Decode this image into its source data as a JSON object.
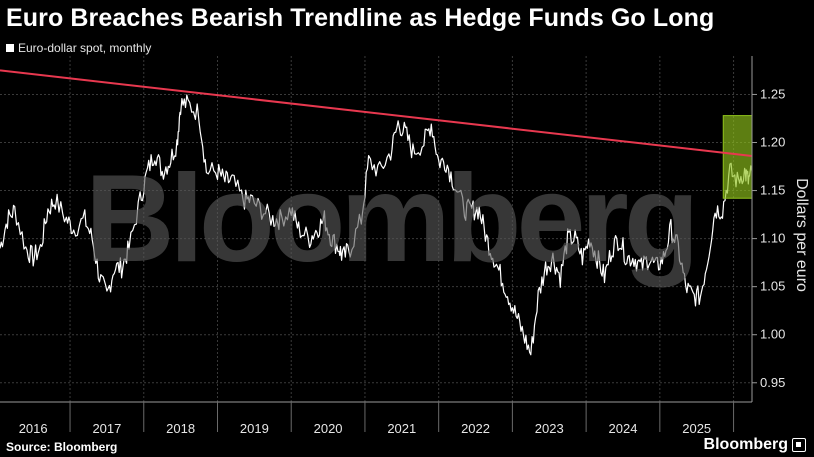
{
  "title": "Euro Breaches Bearish Trendline as Hedge Funds Go Long",
  "legend": {
    "label": "Euro-dollar spot, monthly"
  },
  "source": "Source: Bloomberg",
  "brand": "Bloomberg",
  "watermark": "Bloomberg",
  "colors": {
    "background": "#000000",
    "series": "#ffffff",
    "trendline": "#e8384f",
    "highlight": "#8fc21b",
    "grid": "#3a3a3a"
  },
  "chart_data": {
    "type": "line",
    "ylabel": "Dollars per euro",
    "ylim": [
      0.93,
      1.29
    ],
    "yticks": [
      0.95,
      1.0,
      1.05,
      1.1,
      1.15,
      1.2,
      1.25
    ],
    "ytick_labels": [
      "0.95",
      "1.00",
      "1.05",
      "1.10",
      "1.15",
      "1.20",
      "1.25"
    ],
    "xlim": [
      2015.55,
      2025.75
    ],
    "xticks": [
      2016,
      2017,
      2018,
      2019,
      2020,
      2021,
      2022,
      2023,
      2024,
      2025
    ],
    "xtick_labels": [
      "2016",
      "2017",
      "2018",
      "2019",
      "2020",
      "2021",
      "2022",
      "2023",
      "2024",
      "2025"
    ],
    "grid": true,
    "series": [
      {
        "points": [
          [
            2015.55,
            1.09
          ],
          [
            2015.65,
            1.12
          ],
          [
            2015.75,
            1.13
          ],
          [
            2015.9,
            1.09
          ],
          [
            2016.0,
            1.08
          ],
          [
            2016.1,
            1.09
          ],
          [
            2016.2,
            1.13
          ],
          [
            2016.3,
            1.14
          ],
          [
            2016.45,
            1.12
          ],
          [
            2016.55,
            1.11
          ],
          [
            2016.7,
            1.12
          ],
          [
            2016.8,
            1.1
          ],
          [
            2016.9,
            1.06
          ],
          [
            2017.0,
            1.04
          ],
          [
            2017.1,
            1.07
          ],
          [
            2017.2,
            1.07
          ],
          [
            2017.3,
            1.09
          ],
          [
            2017.45,
            1.14
          ],
          [
            2017.55,
            1.17
          ],
          [
            2017.65,
            1.19
          ],
          [
            2017.75,
            1.17
          ],
          [
            2017.85,
            1.18
          ],
          [
            2017.95,
            1.2
          ],
          [
            2018.0,
            1.24
          ],
          [
            2018.1,
            1.24
          ],
          [
            2018.25,
            1.23
          ],
          [
            2018.35,
            1.17
          ],
          [
            2018.5,
            1.17
          ],
          [
            2018.6,
            1.16
          ],
          [
            2018.7,
            1.16
          ],
          [
            2018.85,
            1.14
          ],
          [
            2018.95,
            1.14
          ],
          [
            2019.1,
            1.13
          ],
          [
            2019.25,
            1.12
          ],
          [
            2019.35,
            1.12
          ],
          [
            2019.5,
            1.13
          ],
          [
            2019.6,
            1.11
          ],
          [
            2019.75,
            1.1
          ],
          [
            2019.85,
            1.11
          ],
          [
            2019.95,
            1.12
          ],
          [
            2020.05,
            1.1
          ],
          [
            2020.15,
            1.09
          ],
          [
            2020.2,
            1.08
          ],
          [
            2020.3,
            1.09
          ],
          [
            2020.45,
            1.12
          ],
          [
            2020.55,
            1.18
          ],
          [
            2020.7,
            1.17
          ],
          [
            2020.85,
            1.19
          ],
          [
            2020.95,
            1.22
          ],
          [
            2021.05,
            1.21
          ],
          [
            2021.15,
            1.19
          ],
          [
            2021.3,
            1.2
          ],
          [
            2021.4,
            1.22
          ],
          [
            2021.5,
            1.18
          ],
          [
            2021.6,
            1.18
          ],
          [
            2021.7,
            1.16
          ],
          [
            2021.85,
            1.13
          ],
          [
            2021.95,
            1.13
          ],
          [
            2022.05,
            1.13
          ],
          [
            2022.15,
            1.1
          ],
          [
            2022.25,
            1.08
          ],
          [
            2022.35,
            1.06
          ],
          [
            2022.45,
            1.04
          ],
          [
            2022.55,
            1.02
          ],
          [
            2022.65,
            1.0
          ],
          [
            2022.75,
            0.98
          ],
          [
            2022.85,
            1.04
          ],
          [
            2022.95,
            1.07
          ],
          [
            2023.05,
            1.08
          ],
          [
            2023.15,
            1.06
          ],
          [
            2023.25,
            1.1
          ],
          [
            2023.35,
            1.1
          ],
          [
            2023.45,
            1.08
          ],
          [
            2023.55,
            1.1
          ],
          [
            2023.65,
            1.08
          ],
          [
            2023.75,
            1.06
          ],
          [
            2023.85,
            1.09
          ],
          [
            2023.95,
            1.1
          ],
          [
            2024.05,
            1.08
          ],
          [
            2024.15,
            1.08
          ],
          [
            2024.25,
            1.07
          ],
          [
            2024.35,
            1.08
          ],
          [
            2024.45,
            1.07
          ],
          [
            2024.55,
            1.08
          ],
          [
            2024.65,
            1.11
          ],
          [
            2024.75,
            1.09
          ],
          [
            2024.85,
            1.05
          ],
          [
            2024.95,
            1.04
          ],
          [
            2025.05,
            1.04
          ],
          [
            2025.15,
            1.08
          ],
          [
            2025.25,
            1.13
          ],
          [
            2025.35,
            1.13
          ],
          [
            2025.45,
            1.17
          ],
          [
            2025.55,
            1.16
          ],
          [
            2025.65,
            1.17
          ],
          [
            2025.7,
            1.16
          ],
          [
            2025.75,
            1.17
          ]
        ]
      }
    ],
    "trendline": {
      "from": [
        2015.55,
        1.275
      ],
      "to": [
        2025.75,
        1.186
      ]
    },
    "highlight_box": {
      "x": [
        2025.36,
        2025.75
      ],
      "y": [
        1.142,
        1.228
      ]
    }
  }
}
